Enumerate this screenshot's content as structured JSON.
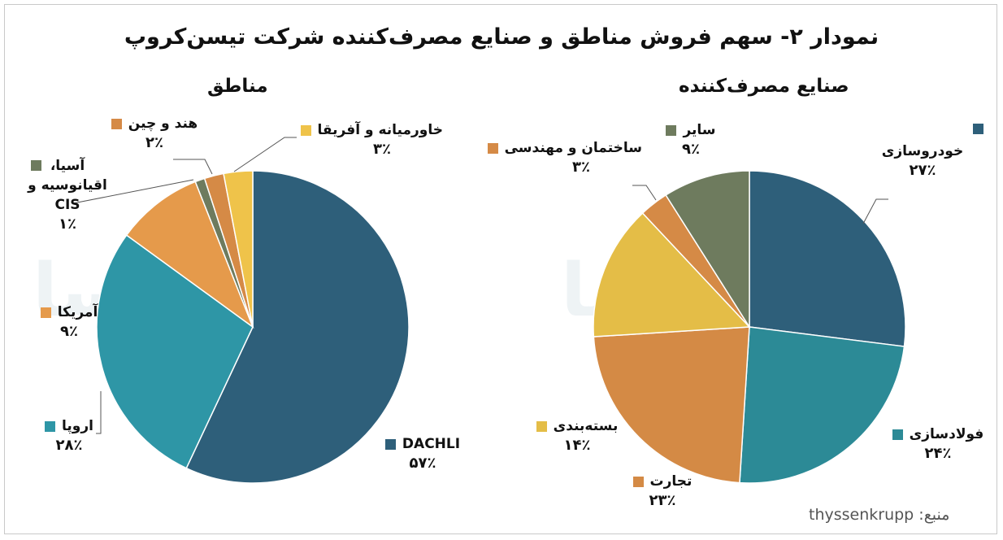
{
  "title": "نمودار ۲- سهم فروش مناطق و صنایع مصرف‌کننده شرکت تیسن‌کروپ",
  "source": {
    "label": "منبع:",
    "name": "thyssenkrupp"
  },
  "watermark": "آتوسا",
  "chart_data": [
    {
      "type": "pie",
      "title": "صنایع مصرف‌کننده",
      "start_angle_deg": 0,
      "direction": "clockwise",
      "slices": [
        {
          "name": "خودروسازی",
          "value": 27,
          "pct_label": "۲۷٪",
          "color": "#2e5f7a"
        },
        {
          "name": "فولادسازی",
          "value": 24,
          "pct_label": "۲۴٪",
          "color": "#2c8a96"
        },
        {
          "name": "تجارت",
          "value": 23,
          "pct_label": "۲۳٪",
          "color": "#d48a45"
        },
        {
          "name": "بسته‌بندی",
          "value": 14,
          "pct_label": "۱۴٪",
          "color": "#e4bd47"
        },
        {
          "name": "ساختمان و مهندسی",
          "value": 3,
          "pct_label": "۳٪",
          "color": "#d58a46"
        },
        {
          "name": "سایر",
          "value": 9,
          "pct_label": "۹٪",
          "color": "#6e7b5e"
        }
      ]
    },
    {
      "type": "pie",
      "title": "مناطق",
      "start_angle_deg": 0,
      "direction": "clockwise",
      "slices": [
        {
          "name": "DACHLI",
          "value": 57,
          "pct_label": "۵۷٪",
          "color": "#2e5f7a"
        },
        {
          "name": "اروپا",
          "value": 28,
          "pct_label": "۲۸٪",
          "color": "#2e96a6"
        },
        {
          "name": "آمریکا",
          "value": 9,
          "pct_label": "۹٪",
          "color": "#e59a4b"
        },
        {
          "name": "آسیا، اقیانوسیه و CIS",
          "value": 1,
          "pct_label": "۱٪",
          "color": "#6e7b5e"
        },
        {
          "name": "هند و چین",
          "value": 2,
          "pct_label": "۲٪",
          "color": "#d58a46"
        },
        {
          "name": "خاورمیانه و آفریقا",
          "value": 3,
          "pct_label": "۳٪",
          "color": "#efc34a"
        }
      ]
    }
  ]
}
